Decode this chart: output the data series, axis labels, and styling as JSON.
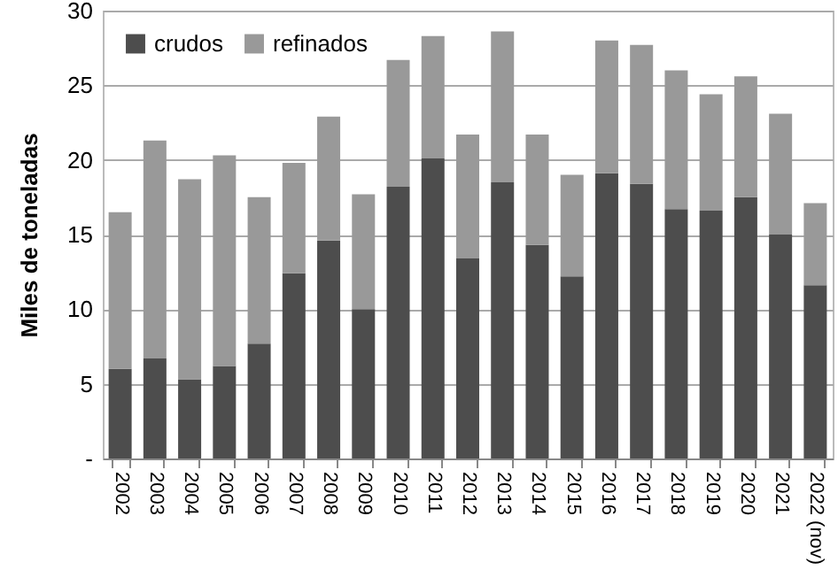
{
  "chart_data": {
    "type": "bar",
    "stacked": true,
    "ylabel": "Miles de toneladas",
    "categories": [
      "2002",
      "2003",
      "2004",
      "2005",
      "2006",
      "2007",
      "2008",
      "2009",
      "2010",
      "2011",
      "2012",
      "2013",
      "2014",
      "2015",
      "2016",
      "2017",
      "2018",
      "2019",
      "2020",
      "2021",
      "2022 (nov)"
    ],
    "series": [
      {
        "name": "crudos",
        "color": "#4d4d4d",
        "values": [
          6.0,
          6.7,
          5.3,
          6.2,
          7.7,
          12.4,
          14.6,
          10.0,
          18.2,
          20.1,
          13.4,
          18.5,
          14.3,
          12.2,
          19.1,
          18.4,
          16.7,
          16.6,
          17.5,
          15.0,
          11.6
        ]
      },
      {
        "name": "refinados",
        "color": "#999999",
        "values": [
          10.5,
          14.6,
          13.4,
          14.1,
          9.8,
          7.4,
          8.3,
          7.7,
          8.5,
          8.2,
          8.3,
          10.1,
          7.4,
          6.8,
          8.9,
          9.3,
          9.3,
          7.8,
          8.1,
          8.1,
          5.5
        ]
      }
    ],
    "ylim": [
      0,
      30
    ],
    "yticks": [
      {
        "value": 0,
        "label": "-"
      },
      5,
      10,
      15,
      20,
      25,
      30
    ],
    "grid": "y",
    "legend": "top left"
  }
}
